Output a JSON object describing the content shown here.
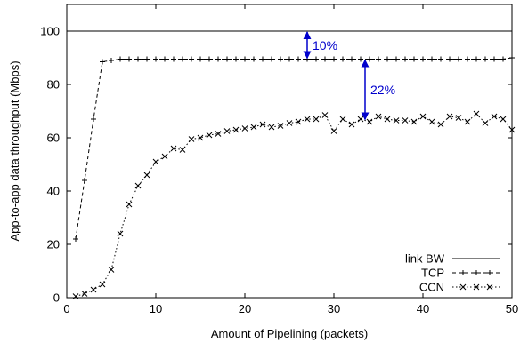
{
  "chart_data": {
    "type": "line",
    "xlabel": "Amount of Pipelining (packets)",
    "ylabel": "App-to-app data throughput (Mbps)",
    "xlim": [
      0,
      50
    ],
    "ylim": [
      0,
      110
    ],
    "x_ticks": [
      "0",
      "10",
      "20",
      "30",
      "40",
      "50"
    ],
    "y_ticks": [
      "0",
      "20",
      "40",
      "60",
      "80",
      "100"
    ],
    "grid": false,
    "legend_position": "bottom-right",
    "series": [
      {
        "name": "link BW",
        "style": "solid",
        "marker": "none",
        "x": [
          0,
          50
        ],
        "y": [
          100,
          100
        ]
      },
      {
        "name": "TCP",
        "style": "dashed",
        "marker": "plus",
        "x": [
          1,
          2,
          3,
          4,
          5,
          6,
          7,
          8,
          9,
          10,
          11,
          12,
          13,
          14,
          15,
          16,
          17,
          18,
          19,
          20,
          21,
          22,
          23,
          24,
          25,
          26,
          27,
          28,
          29,
          30,
          31,
          32,
          33,
          34,
          35,
          36,
          37,
          38,
          39,
          40,
          41,
          42,
          43,
          44,
          45,
          46,
          47,
          48,
          49,
          50
        ],
        "y": [
          22,
          44,
          67,
          88.5,
          89,
          89.5,
          89.5,
          89.5,
          89.5,
          89.5,
          89.5,
          89.5,
          89.5,
          89.5,
          89.5,
          89.5,
          89.5,
          89.5,
          89.5,
          89.5,
          89.5,
          89.5,
          89.5,
          89.5,
          89.5,
          89.5,
          89.5,
          89.5,
          89.5,
          89.5,
          89.5,
          89.5,
          89.5,
          89.5,
          89.5,
          89.5,
          89.5,
          89.5,
          89.5,
          89.5,
          89.5,
          89.5,
          89.5,
          89.5,
          89.5,
          89.5,
          89.5,
          89.5,
          89.5,
          90
        ]
      },
      {
        "name": "CCN",
        "style": "dotted",
        "marker": "x",
        "x": [
          1,
          2,
          3,
          4,
          5,
          6,
          7,
          8,
          9,
          10,
          11,
          12,
          13,
          14,
          15,
          16,
          17,
          18,
          19,
          20,
          21,
          22,
          23,
          24,
          25,
          26,
          27,
          28,
          29,
          30,
          31,
          32,
          33,
          34,
          35,
          36,
          37,
          38,
          39,
          40,
          41,
          42,
          43,
          44,
          45,
          46,
          47,
          48,
          49,
          50
        ],
        "y": [
          0.5,
          1.5,
          3,
          5,
          10.5,
          24,
          35,
          42,
          46,
          51,
          53,
          56,
          55.5,
          59.5,
          60,
          61,
          61.5,
          62.5,
          63,
          63.5,
          64,
          65,
          64,
          64.5,
          65.5,
          66,
          67,
          67,
          68.5,
          62.5,
          67,
          65,
          67,
          66,
          68,
          67,
          66.5,
          66.5,
          66,
          68,
          66,
          65,
          68,
          67.5,
          66,
          69,
          65.5,
          68,
          67,
          63
        ]
      }
    ],
    "annotations": [
      {
        "text": "10%",
        "x": 27,
        "y_from": 100,
        "y_to": 89.5,
        "color": "#0000cc"
      },
      {
        "text": "22%",
        "x": 33.5,
        "y_from": 89.5,
        "y_to": 66.5,
        "color": "#0000cc"
      }
    ]
  }
}
